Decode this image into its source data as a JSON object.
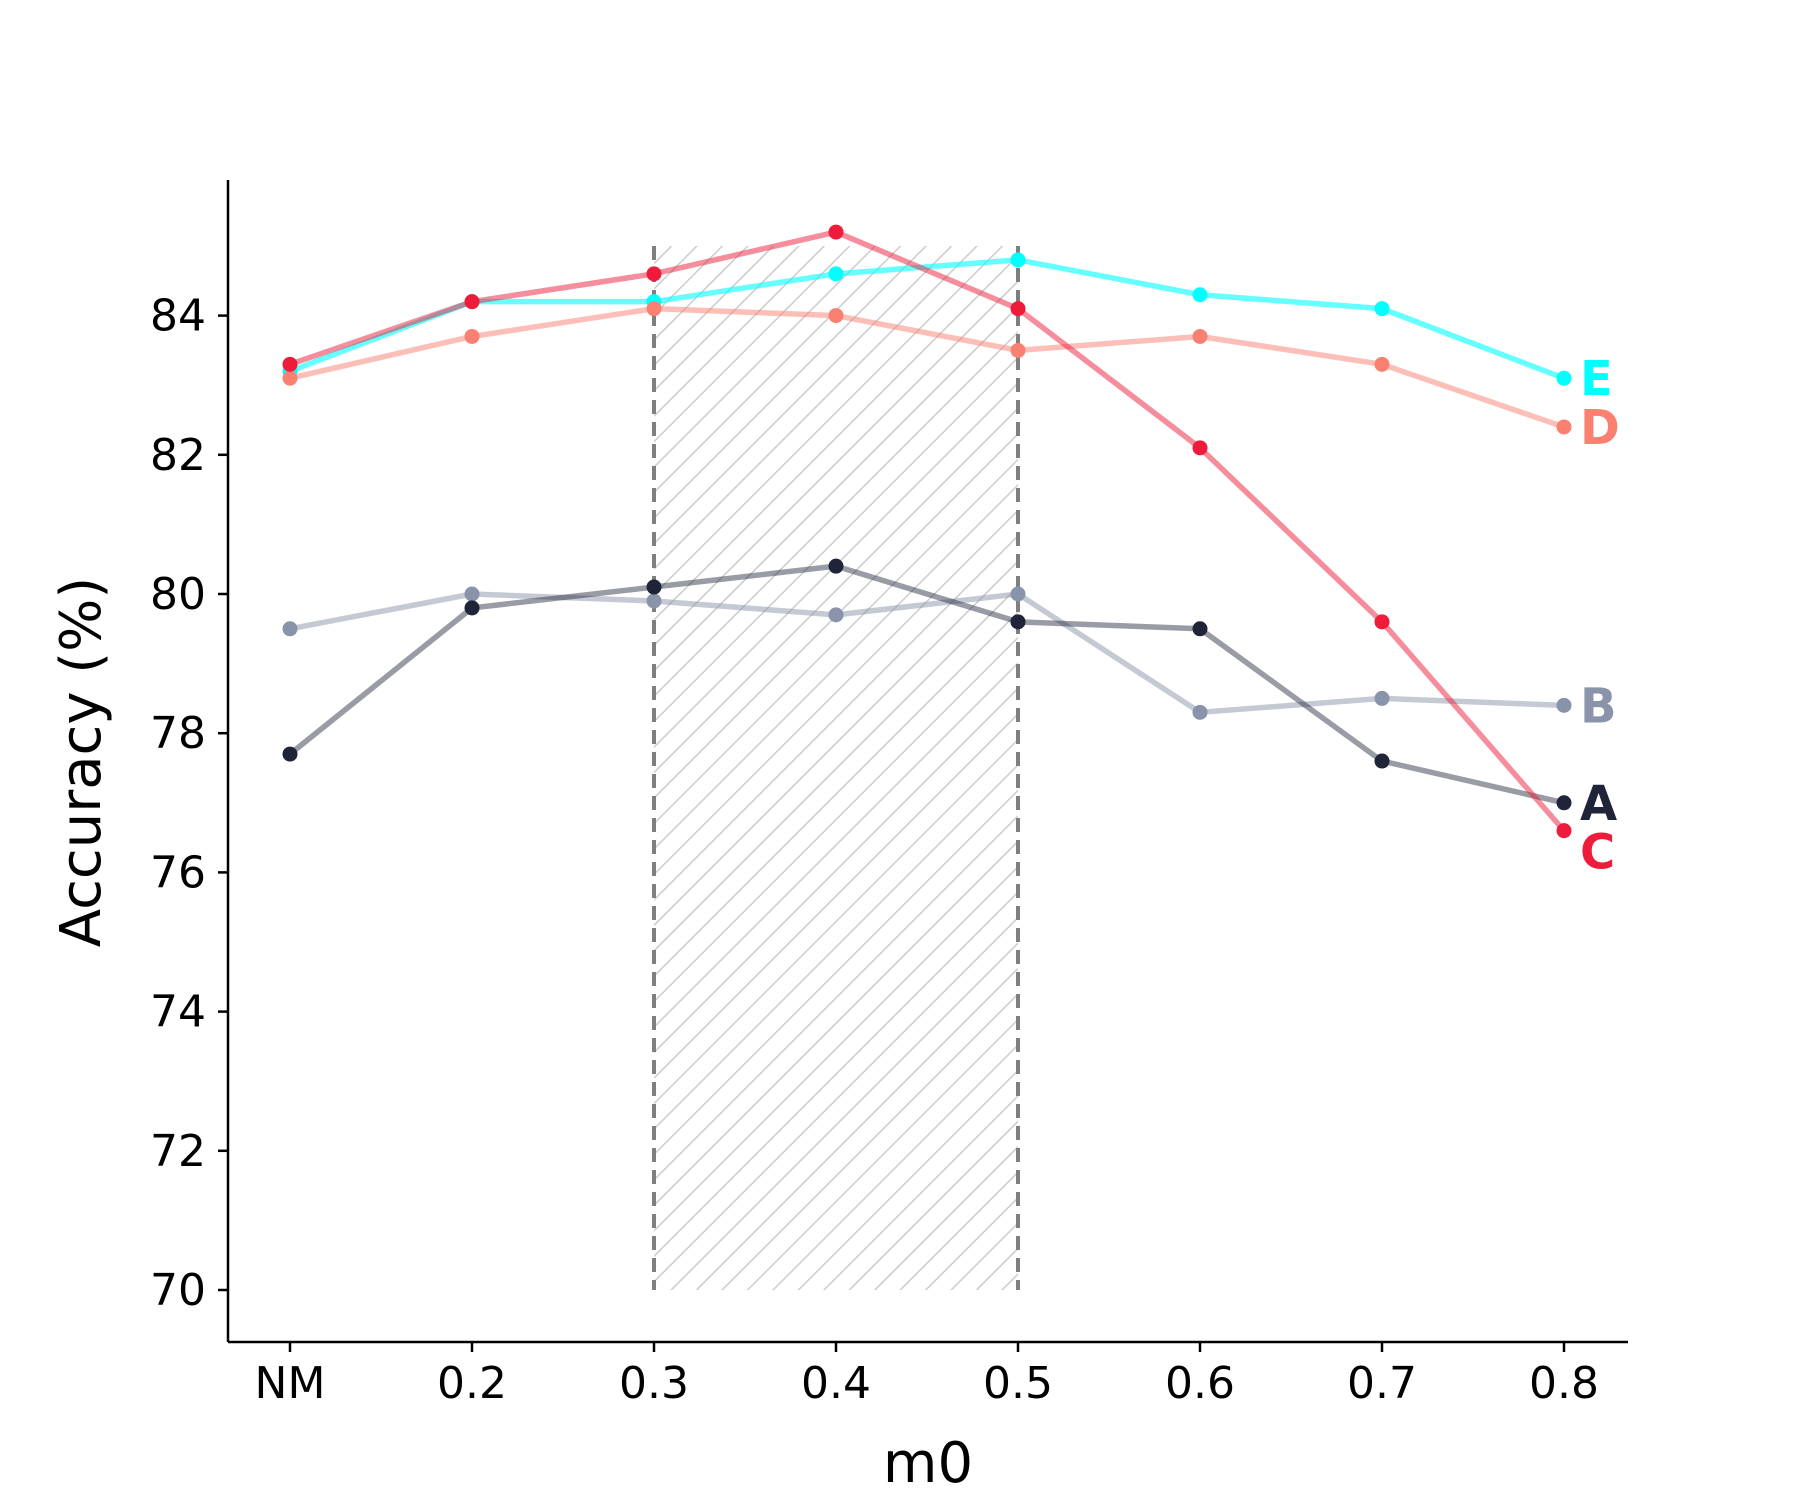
{
  "chart_data": {
    "type": "line",
    "title": "",
    "xlabel": "m0",
    "ylabel": "Accuracy (%)",
    "categories": [
      "NM",
      "0.2",
      "0.3",
      "0.4",
      "0.5",
      "0.6",
      "0.7",
      "0.8"
    ],
    "ylim": [
      69.2,
      85.9
    ],
    "yticks": [
      70,
      72,
      74,
      76,
      78,
      80,
      82,
      84
    ],
    "ytick_labels": [
      "70",
      "72",
      "74",
      "76",
      "78",
      "80",
      "82",
      "84"
    ],
    "grid": false,
    "highlight_region": {
      "x_from": "0.3",
      "x_to": "0.5",
      "y_from": 70,
      "y_to": 85,
      "style": "hatched with dashed borders"
    },
    "series": [
      {
        "name": "E",
        "color": "#00FFFF",
        "alpha": 0.6,
        "values": [
          83.2,
          84.2,
          84.2,
          84.6,
          84.8,
          84.3,
          84.1,
          83.1
        ]
      },
      {
        "name": "D",
        "color": "#FA8072",
        "alpha": 0.5,
        "values": [
          83.1,
          83.7,
          84.1,
          84.0,
          83.5,
          83.7,
          83.3,
          82.4
        ]
      },
      {
        "name": "B",
        "color": "#8994AA",
        "alpha": 0.5,
        "values": [
          79.5,
          80.0,
          79.9,
          79.7,
          80.0,
          78.3,
          78.5,
          78.4
        ]
      },
      {
        "name": "A",
        "color": "#1F2438",
        "alpha": 0.45,
        "values": [
          77.7,
          79.8,
          80.1,
          80.4,
          79.6,
          79.5,
          77.6,
          77.0
        ]
      },
      {
        "name": "C",
        "color": "#EE1B3A",
        "alpha": 0.5,
        "values": [
          83.3,
          84.2,
          84.6,
          85.2,
          84.1,
          82.1,
          79.6,
          76.6
        ]
      }
    ],
    "end_labels": [
      {
        "series": "E",
        "text": "E",
        "label_value": 83.1
      },
      {
        "series": "D",
        "text": "D",
        "label_value": 82.4
      },
      {
        "series": "B",
        "text": "B",
        "label_value": 78.4
      },
      {
        "series": "A",
        "text": "A",
        "label_value": 77.0
      },
      {
        "series": "C",
        "text": "C",
        "label_value": 76.3
      }
    ]
  }
}
